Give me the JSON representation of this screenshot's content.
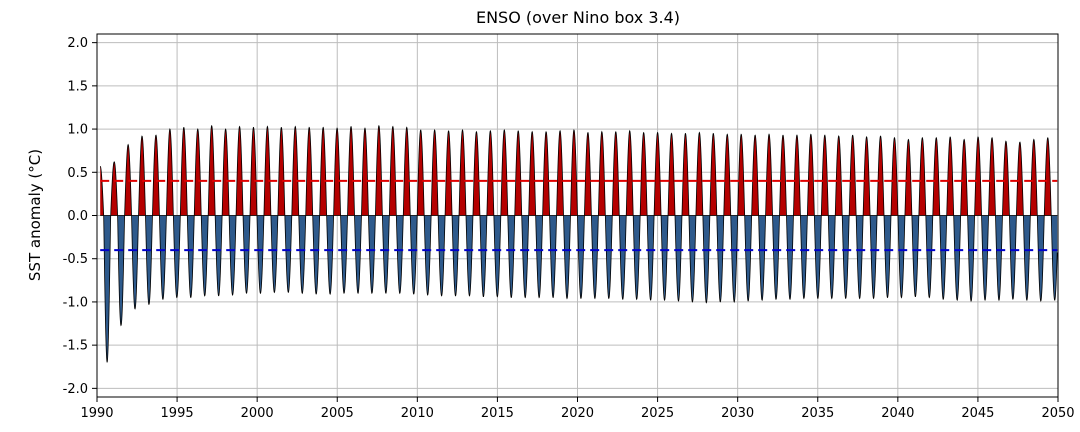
{
  "chart_data": {
    "type": "area",
    "title": "ENSO (over Nino box 3.4)",
    "xlabel": "",
    "ylabel": "SST anomaly (°C)",
    "xlim": [
      1990,
      2050
    ],
    "ylim": [
      -2.1,
      2.1
    ],
    "xticks": [
      1990,
      1995,
      2000,
      2005,
      2010,
      2015,
      2020,
      2025,
      2030,
      2035,
      2040,
      2045,
      2050
    ],
    "yticks": [
      -2.0,
      -1.5,
      -1.0,
      -0.5,
      0.0,
      0.5,
      1.0,
      1.5,
      2.0
    ],
    "ytick_labels": [
      "-2.0",
      "-1.5",
      "-1.0",
      "-0.5",
      "0.0",
      "0.5",
      "1.0",
      "1.5",
      "2.0"
    ],
    "grid": true,
    "oscillation": {
      "start_year": 1990.2,
      "end_year": 2049.95,
      "period_years": 0.87,
      "phase_peaks_years_first": [
        1990.2,
        1991.75
      ],
      "peak_values": [
        0.57,
        0.62,
        0.82,
        0.92,
        0.93,
        1.0,
        1.02,
        1.0,
        1.04,
        1.0,
        1.03,
        1.02,
        1.03,
        1.02,
        1.03,
        1.02,
        1.02,
        1.01,
        1.03,
        1.01,
        1.04,
        1.03,
        1.02,
        0.99,
        0.99,
        0.98,
        0.99,
        0.97,
        0.98,
        0.99,
        0.98,
        0.97,
        0.97,
        0.98,
        0.99,
        0.96,
        0.97,
        0.97,
        0.98,
        0.96,
        0.96,
        0.95,
        0.95,
        0.96,
        0.95,
        0.94,
        0.94,
        0.93,
        0.94,
        0.93,
        0.93,
        0.94,
        0.93,
        0.92,
        0.93,
        0.91,
        0.92,
        0.9,
        0.88,
        0.9,
        0.9,
        0.91,
        0.88,
        0.91,
        0.9,
        0.86,
        0.85,
        0.88,
        0.9
      ],
      "trough_values": [
        -1.7,
        -1.27,
        -1.08,
        -1.03,
        -0.97,
        -0.95,
        -0.95,
        -0.93,
        -0.93,
        -0.92,
        -0.9,
        -0.9,
        -0.89,
        -0.89,
        -0.9,
        -0.91,
        -0.91,
        -0.9,
        -0.9,
        -0.9,
        -0.9,
        -0.9,
        -0.91,
        -0.92,
        -0.93,
        -0.93,
        -0.93,
        -0.94,
        -0.94,
        -0.95,
        -0.95,
        -0.95,
        -0.95,
        -0.96,
        -0.96,
        -0.96,
        -0.96,
        -0.97,
        -0.97,
        -0.98,
        -0.98,
        -0.99,
        -1.0,
        -1.01,
        -1.0,
        -1.0,
        -0.99,
        -0.98,
        -0.97,
        -0.97,
        -0.96,
        -0.96,
        -0.96,
        -0.96,
        -0.96,
        -0.96,
        -0.95,
        -0.95,
        -0.94,
        -0.95,
        -0.97,
        -0.98,
        -0.99,
        -0.98,
        -0.98,
        -0.97,
        -0.98,
        -0.99,
        -0.98
      ]
    },
    "thresholds": [
      {
        "value": 0.4,
        "color": "#e00000",
        "style": "dashed"
      },
      {
        "value": -0.4,
        "color": "#0000cc",
        "style": "dashed"
      }
    ],
    "colors": {
      "positive_fill": "#b50000",
      "negative_fill": "#2e5a8c",
      "outline": "#000000",
      "grid": "#bdbdbd"
    }
  }
}
